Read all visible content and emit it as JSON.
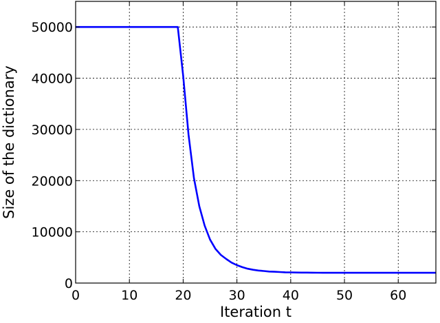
{
  "chart_data": {
    "type": "line",
    "title": "",
    "xlabel": "Iteration t",
    "ylabel": "Size of the dictionary",
    "xlim": [
      0,
      67
    ],
    "ylim": [
      0,
      55000
    ],
    "grid": true,
    "legend": "none",
    "x_ticks": [
      0,
      10,
      20,
      30,
      40,
      50,
      60
    ],
    "y_ticks": [
      0,
      10000,
      20000,
      30000,
      40000,
      50000
    ],
    "x_tick_labels": [
      "0",
      "10",
      "20",
      "30",
      "40",
      "50",
      "60"
    ],
    "y_tick_labels": [
      "0",
      "10000",
      "20000",
      "30000",
      "40000",
      "50000"
    ],
    "series": [
      {
        "color": "#0000ff",
        "x": [
          0,
          1,
          2,
          3,
          4,
          5,
          6,
          7,
          8,
          9,
          10,
          11,
          12,
          13,
          14,
          15,
          16,
          17,
          18,
          19,
          20,
          21,
          22,
          23,
          24,
          25,
          26,
          27,
          28,
          29,
          30,
          31,
          32,
          33,
          34,
          35,
          36,
          37,
          38,
          39,
          40,
          41,
          42,
          43,
          44,
          45,
          46,
          47,
          48,
          49,
          50,
          51,
          52,
          53,
          54,
          55,
          56,
          57,
          58,
          59,
          60,
          61,
          62,
          63,
          64,
          65,
          66,
          67
        ],
        "y": [
          50000,
          50000,
          50000,
          50000,
          50000,
          50000,
          50000,
          50000,
          50000,
          50000,
          50000,
          50000,
          50000,
          50000,
          50000,
          50000,
          50000,
          50000,
          50000,
          50000,
          40500,
          29000,
          20500,
          15000,
          11200,
          8500,
          6700,
          5500,
          4700,
          4000,
          3500,
          3100,
          2800,
          2600,
          2450,
          2350,
          2250,
          2200,
          2150,
          2100,
          2080,
          2060,
          2050,
          2040,
          2030,
          2020,
          2010,
          2000,
          2000,
          2000,
          2000,
          2000,
          2000,
          2000,
          2000,
          2000,
          2000,
          2000,
          2000,
          2000,
          2000,
          2000,
          2000,
          2000,
          2000,
          2000,
          2000,
          2000
        ]
      }
    ]
  }
}
